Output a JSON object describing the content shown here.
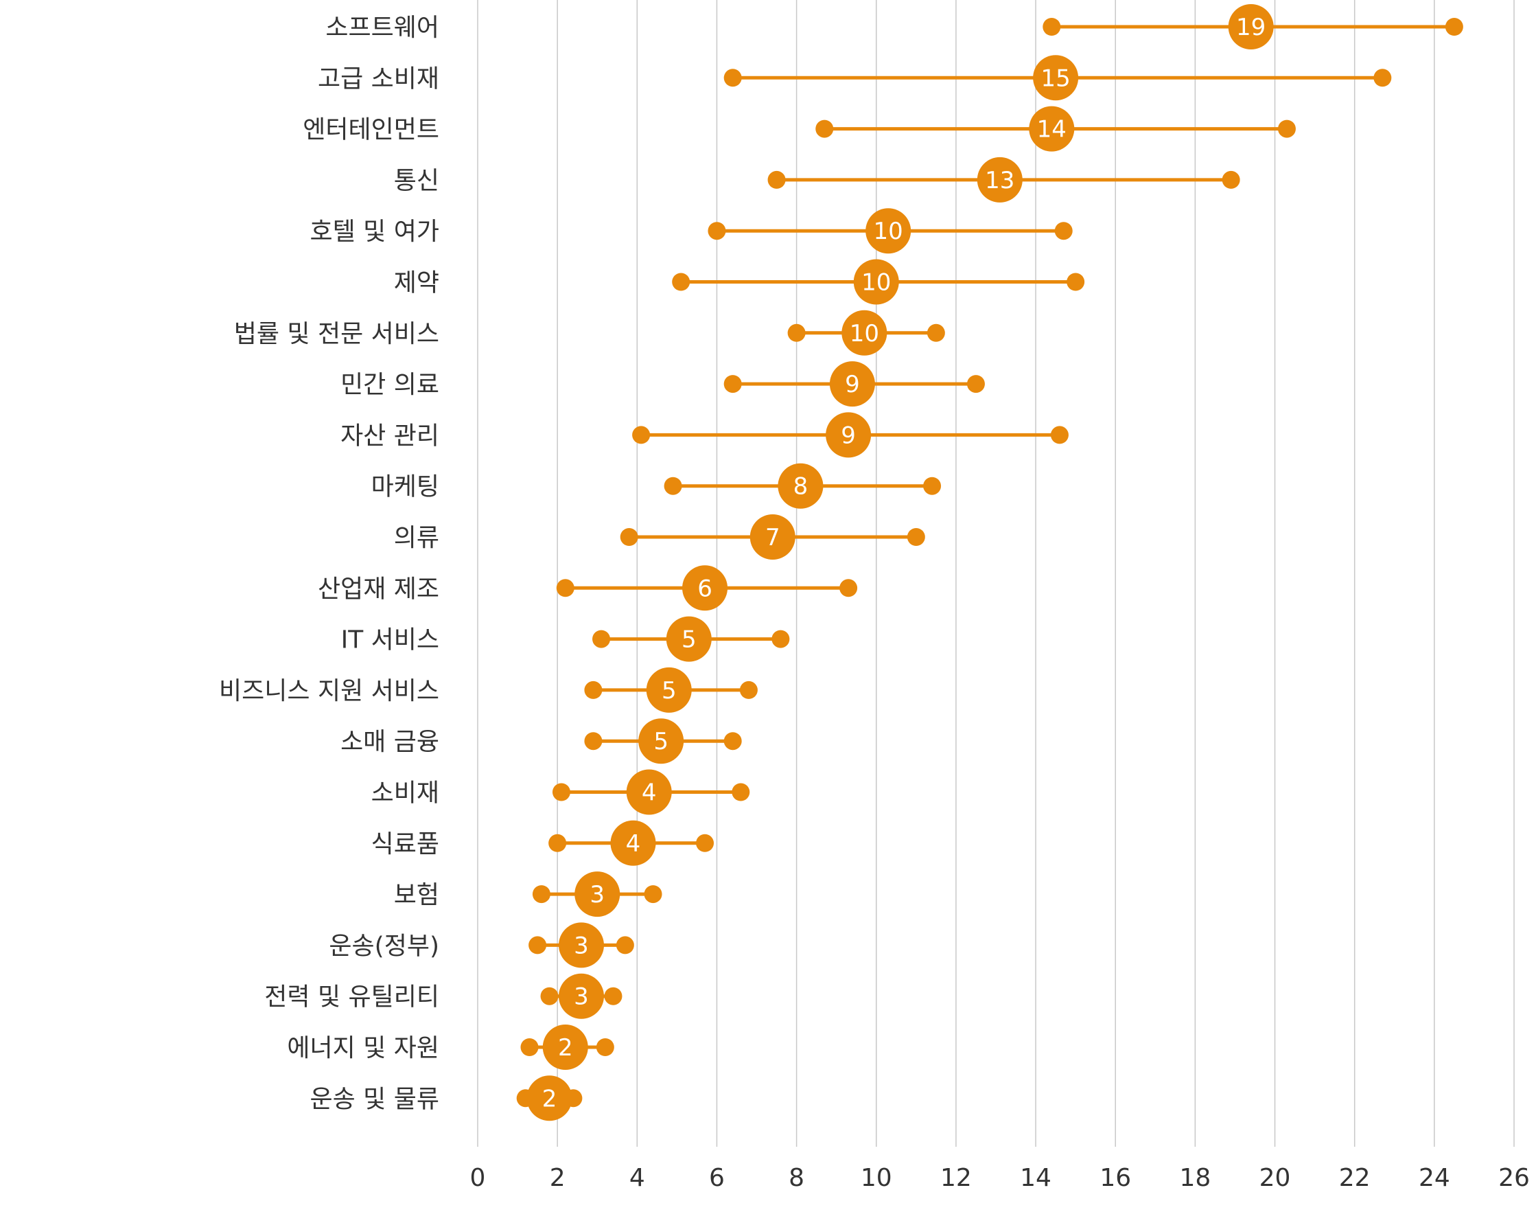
{
  "chart_data": {
    "type": "dumbbell",
    "orientation": "horizontal",
    "title": "",
    "xlabel": "",
    "ylabel": "",
    "xlim": [
      0,
      26
    ],
    "xticks": [
      0,
      2,
      4,
      6,
      8,
      10,
      12,
      14,
      16,
      18,
      20,
      22,
      24,
      26
    ],
    "grid": "vertical",
    "colors": {
      "marker": "#E8890C",
      "grid": "#c8c8c8",
      "text": "#333333"
    },
    "categories": [
      "소프트웨어",
      "고급 소비재",
      "엔터테인먼트",
      "통신",
      "호텔 및 여가",
      "제약",
      "법률 및 전문 서비스",
      "민간 의료",
      "자산 관리",
      "마케팅",
      "의류",
      "산업재 제조",
      "IT 서비스",
      "비즈니스 지원 서비스",
      "소매 금융",
      "소비재",
      "식료품",
      "보험",
      "운송(정부)",
      "전력 및 유틸리티",
      "에너지 및 자원",
      "운송 및 물류"
    ],
    "min": [
      14.4,
      6.4,
      8.7,
      7.5,
      6.0,
      5.1,
      8.0,
      6.4,
      4.1,
      4.9,
      3.8,
      2.2,
      3.1,
      2.9,
      2.9,
      2.1,
      2.0,
      1.6,
      1.5,
      1.8,
      1.3,
      1.2
    ],
    "max": [
      24.5,
      22.7,
      20.3,
      18.9,
      14.7,
      15.0,
      11.5,
      12.5,
      14.6,
      11.4,
      11.0,
      9.3,
      7.6,
      6.8,
      6.4,
      6.6,
      5.7,
      4.4,
      3.7,
      3.4,
      3.2,
      2.4
    ],
    "median": [
      19.4,
      14.5,
      14.4,
      13.1,
      10.3,
      10.0,
      9.7,
      9.4,
      9.3,
      8.1,
      7.4,
      5.7,
      5.3,
      4.8,
      4.6,
      4.3,
      3.9,
      3.0,
      2.6,
      2.6,
      2.2,
      1.8
    ],
    "median_labels": [
      "19",
      "15",
      "14",
      "13",
      "10",
      "10",
      "10",
      "9",
      "9",
      "8",
      "7",
      "6",
      "5",
      "5",
      "5",
      "4",
      "4",
      "3",
      "3",
      "3",
      "2",
      "2"
    ]
  }
}
